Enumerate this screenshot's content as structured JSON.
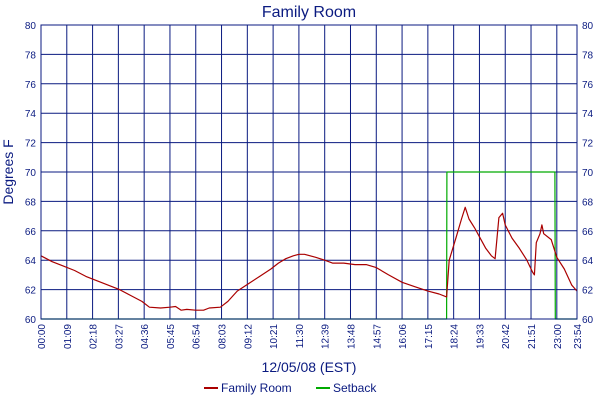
{
  "chart_data": {
    "type": "line",
    "title": "Family Room",
    "xlabel": "12/05/08 (EST)",
    "ylabel": "Degrees F",
    "ylim": [
      60,
      80
    ],
    "yticks": [
      60,
      62,
      64,
      66,
      68,
      70,
      72,
      74,
      76,
      78,
      80
    ],
    "xlim_minutes": [
      0,
      1434
    ],
    "xticks": [
      "00:00",
      "01:09",
      "02:18",
      "03:27",
      "04:36",
      "05:45",
      "06:54",
      "08:03",
      "09:12",
      "10:21",
      "11:30",
      "12:39",
      "13:48",
      "14:57",
      "16:06",
      "17:15",
      "18:24",
      "19:33",
      "20:42",
      "21:51",
      "23:00",
      "23:54"
    ],
    "grid": true,
    "legend_position": "bottom",
    "series": [
      {
        "name": "Family Room",
        "color": "#aa0000",
        "points": [
          [
            "00:00",
            64.3
          ],
          [
            "00:30",
            63.9
          ],
          [
            "01:00",
            63.6
          ],
          [
            "01:30",
            63.3
          ],
          [
            "02:00",
            62.9
          ],
          [
            "02:30",
            62.6
          ],
          [
            "03:00",
            62.3
          ],
          [
            "03:30",
            62.0
          ],
          [
            "04:00",
            61.6
          ],
          [
            "04:30",
            61.2
          ],
          [
            "04:50",
            60.8
          ],
          [
            "05:20",
            60.75
          ],
          [
            "05:45",
            60.8
          ],
          [
            "06:00",
            60.85
          ],
          [
            "06:15",
            60.6
          ],
          [
            "06:30",
            60.65
          ],
          [
            "06:54",
            60.6
          ],
          [
            "07:15",
            60.6
          ],
          [
            "07:30",
            60.75
          ],
          [
            "08:00",
            60.8
          ],
          [
            "08:20",
            61.2
          ],
          [
            "08:45",
            61.9
          ],
          [
            "09:15",
            62.4
          ],
          [
            "09:45",
            62.9
          ],
          [
            "10:15",
            63.4
          ],
          [
            "10:35",
            63.8
          ],
          [
            "10:55",
            64.1
          ],
          [
            "11:15",
            64.3
          ],
          [
            "11:30",
            64.4
          ],
          [
            "11:45",
            64.4
          ],
          [
            "12:15",
            64.2
          ],
          [
            "12:39",
            64.0
          ],
          [
            "13:00",
            63.8
          ],
          [
            "13:30",
            63.8
          ],
          [
            "14:00",
            63.7
          ],
          [
            "14:30",
            63.7
          ],
          [
            "14:57",
            63.5
          ],
          [
            "15:30",
            63.0
          ],
          [
            "16:06",
            62.5
          ],
          [
            "16:40",
            62.2
          ],
          [
            "17:15",
            61.9
          ],
          [
            "17:45",
            61.7
          ],
          [
            "18:05",
            61.5
          ],
          [
            "18:12",
            64.0
          ],
          [
            "18:30",
            65.5
          ],
          [
            "18:45",
            66.8
          ],
          [
            "18:55",
            67.6
          ],
          [
            "19:05",
            66.8
          ],
          [
            "19:20",
            66.2
          ],
          [
            "19:33",
            65.6
          ],
          [
            "19:50",
            64.8
          ],
          [
            "20:05",
            64.3
          ],
          [
            "20:15",
            64.1
          ],
          [
            "20:25",
            66.9
          ],
          [
            "20:35",
            67.2
          ],
          [
            "20:42",
            66.4
          ],
          [
            "21:00",
            65.5
          ],
          [
            "21:20",
            64.8
          ],
          [
            "21:40",
            64.0
          ],
          [
            "21:55",
            63.2
          ],
          [
            "22:00",
            63.0
          ],
          [
            "22:05",
            65.2
          ],
          [
            "22:15",
            65.8
          ],
          [
            "22:20",
            66.4
          ],
          [
            "22:25",
            65.8
          ],
          [
            "22:45",
            65.4
          ],
          [
            "23:00",
            64.2
          ],
          [
            "23:20",
            63.4
          ],
          [
            "23:40",
            62.3
          ],
          [
            "23:54",
            61.9
          ]
        ]
      },
      {
        "name": "Setback",
        "color": "#00aa00",
        "points": [
          [
            "00:00",
            60
          ],
          [
            "18:05",
            60
          ],
          [
            "18:06",
            70
          ],
          [
            "22:55",
            70
          ],
          [
            "22:56",
            60
          ],
          [
            "23:54",
            60
          ]
        ]
      }
    ]
  }
}
